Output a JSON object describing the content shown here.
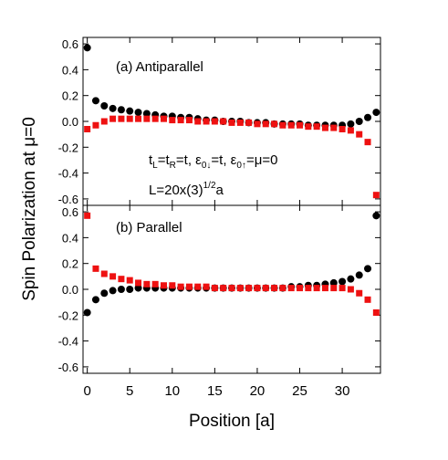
{
  "chart_data": [
    {
      "type": "scatter",
      "panel_label": "(a)  Antiparallel",
      "annotation": {
        "line1_parts": [
          "t",
          "L",
          "=t",
          "R",
          "=t, ε",
          "0↓",
          "=t, ε",
          "0↑",
          "=μ=0"
        ],
        "line2_parts": [
          "L=20x(3)",
          "1/2",
          "a"
        ]
      },
      "xlabel": "Position [a]",
      "ylabel": "Spin Polarization at μ=0",
      "xlim": [
        -0.5,
        34.5
      ],
      "ylim": [
        -0.65,
        0.65
      ],
      "yticks": [
        "0.6",
        "0.4",
        "0.2",
        "0.0",
        "-0.2",
        "-0.4",
        "-0.6"
      ],
      "series": [
        {
          "marker": "circle",
          "color": "#000000",
          "x": [
            0,
            1,
            2,
            3,
            4,
            5,
            6,
            7,
            8,
            9,
            10,
            11,
            12,
            13,
            14,
            15,
            16,
            17,
            18,
            19,
            20,
            21,
            22,
            23,
            24,
            25,
            26,
            27,
            28,
            29,
            30,
            31,
            32,
            33,
            34
          ],
          "values": [
            0.57,
            0.16,
            0.12,
            0.1,
            0.09,
            0.08,
            0.07,
            0.06,
            0.05,
            0.04,
            0.04,
            0.03,
            0.03,
            0.02,
            0.01,
            0.01,
            0.0,
            0.0,
            0.0,
            -0.01,
            -0.01,
            -0.01,
            -0.02,
            -0.02,
            -0.02,
            -0.02,
            -0.03,
            -0.03,
            -0.03,
            -0.03,
            -0.03,
            -0.02,
            0.0,
            0.03,
            0.07
          ]
        },
        {
          "marker": "square",
          "color": "#ee1111",
          "x": [
            0,
            1,
            2,
            3,
            4,
            5,
            6,
            7,
            8,
            9,
            10,
            11,
            12,
            13,
            14,
            15,
            16,
            17,
            18,
            19,
            20,
            21,
            22,
            23,
            24,
            25,
            26,
            27,
            28,
            29,
            30,
            31,
            32,
            33,
            34
          ],
          "values": [
            -0.06,
            -0.03,
            0.0,
            0.02,
            0.02,
            0.02,
            0.02,
            0.02,
            0.02,
            0.02,
            0.01,
            0.01,
            0.01,
            0.0,
            0.0,
            0.0,
            0.0,
            -0.01,
            -0.01,
            -0.01,
            -0.02,
            -0.02,
            -0.02,
            -0.03,
            -0.03,
            -0.03,
            -0.04,
            -0.04,
            -0.05,
            -0.05,
            -0.06,
            -0.07,
            -0.1,
            -0.16,
            -0.57
          ]
        }
      ]
    },
    {
      "type": "scatter",
      "panel_label": "(b)  Parallel",
      "xlim": [
        -0.5,
        34.5
      ],
      "ylim": [
        -0.65,
        0.65
      ],
      "yticks": [
        "0.6",
        "0.4",
        "0.2",
        "0.0",
        "-0.2",
        "-0.4",
        "-0.6"
      ],
      "xticks": [
        "0",
        "5",
        "10",
        "15",
        "20",
        "25",
        "30"
      ],
      "series": [
        {
          "marker": "circle",
          "color": "#000000",
          "x": [
            0,
            1,
            2,
            3,
            4,
            5,
            6,
            7,
            8,
            9,
            10,
            11,
            12,
            13,
            14,
            15,
            16,
            17,
            18,
            19,
            20,
            21,
            22,
            23,
            24,
            25,
            26,
            27,
            28,
            29,
            30,
            31,
            32,
            33,
            34
          ],
          "values": [
            -0.18,
            -0.08,
            -0.03,
            -0.01,
            0.0,
            0.0,
            0.01,
            0.01,
            0.01,
            0.01,
            0.01,
            0.01,
            0.01,
            0.01,
            0.01,
            0.01,
            0.01,
            0.01,
            0.01,
            0.01,
            0.01,
            0.01,
            0.01,
            0.01,
            0.02,
            0.02,
            0.03,
            0.03,
            0.04,
            0.05,
            0.06,
            0.08,
            0.11,
            0.16,
            0.57
          ]
        },
        {
          "marker": "square",
          "color": "#ee1111",
          "x": [
            0,
            1,
            2,
            3,
            4,
            5,
            6,
            7,
            8,
            9,
            10,
            11,
            12,
            13,
            14,
            15,
            16,
            17,
            18,
            19,
            20,
            21,
            22,
            23,
            24,
            25,
            26,
            27,
            28,
            29,
            30,
            31,
            32,
            33,
            34
          ],
          "values": [
            0.57,
            0.16,
            0.12,
            0.1,
            0.08,
            0.07,
            0.05,
            0.04,
            0.04,
            0.03,
            0.03,
            0.02,
            0.02,
            0.02,
            0.02,
            0.01,
            0.01,
            0.01,
            0.01,
            0.01,
            0.01,
            0.01,
            0.01,
            0.01,
            0.01,
            0.01,
            0.01,
            0.01,
            0.01,
            0.01,
            0.01,
            0.0,
            -0.03,
            -0.08,
            -0.18
          ]
        }
      ]
    }
  ]
}
